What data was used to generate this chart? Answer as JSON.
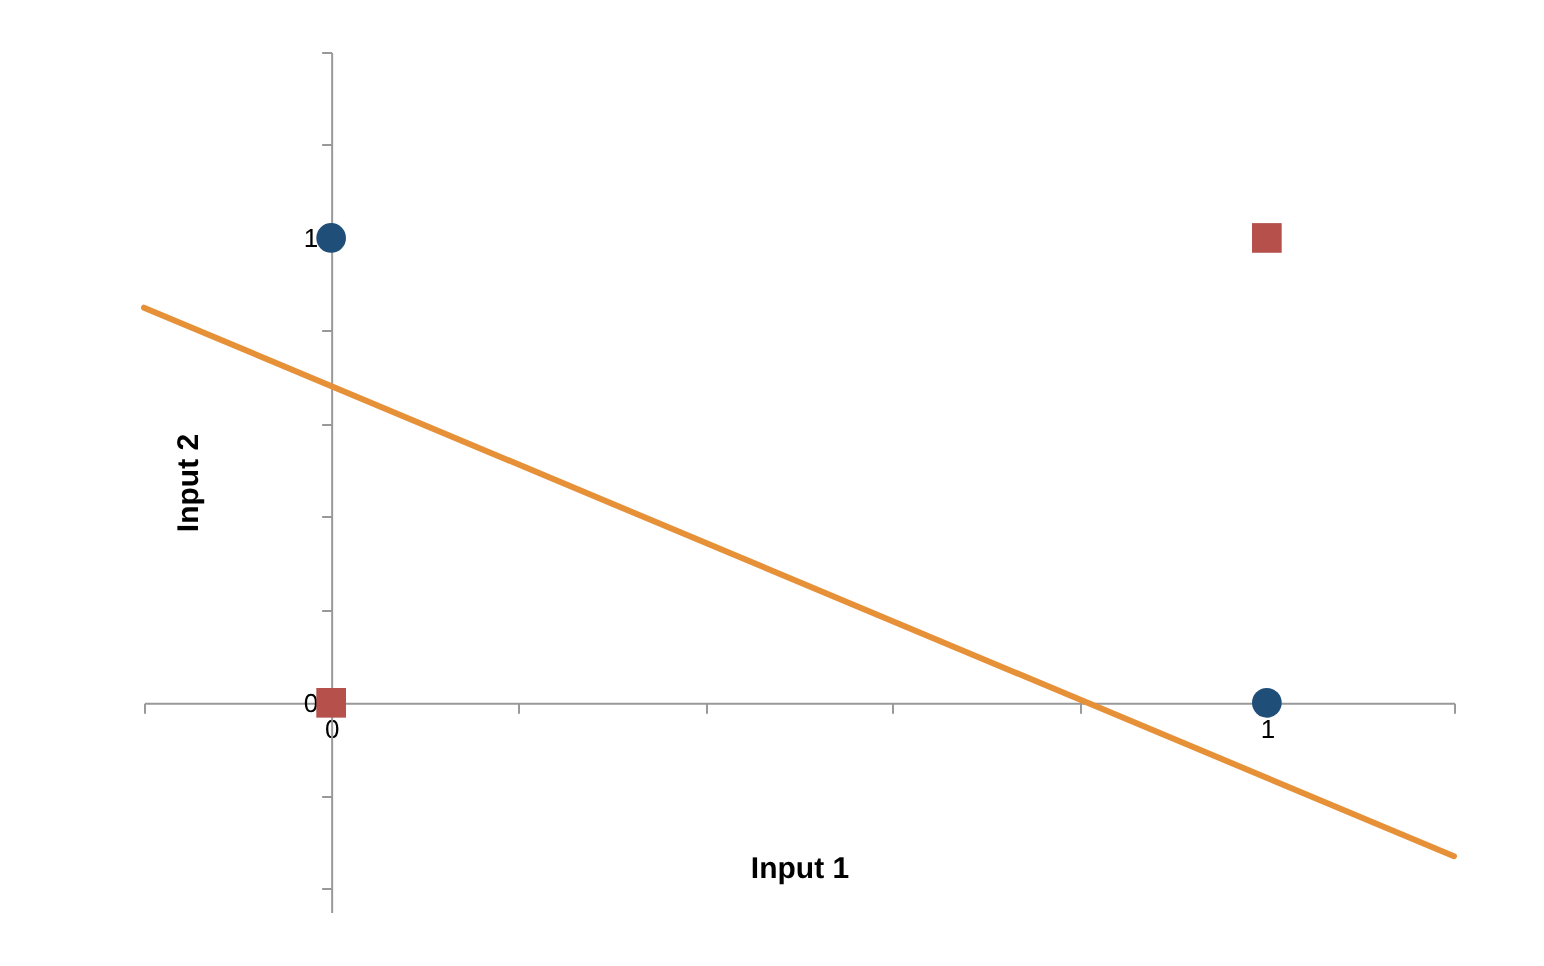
{
  "chart_data": {
    "type": "scatter",
    "xlabel": "Input 1",
    "ylabel": "Input 2",
    "xlim": [
      -0.2,
      1.2
    ],
    "ylim": [
      -0.45,
      1.4
    ],
    "xticks": [
      {
        "value": -0.2,
        "label": null
      },
      0,
      {
        "value": 0.2,
        "label": null
      },
      {
        "value": 0.4,
        "label": null
      },
      {
        "value": 0.6,
        "label": null
      },
      {
        "value": 0.8,
        "label": null
      },
      1,
      {
        "value": 1.2,
        "label": null
      }
    ],
    "yticks": [
      {
        "value": -0.4,
        "label": null
      },
      {
        "value": -0.2,
        "label": null
      },
      0,
      {
        "value": 0.2,
        "label": null
      },
      {
        "value": 0.4,
        "label": null
      },
      {
        "value": 0.6,
        "label": null
      },
      {
        "value": 0.8,
        "label": null
      },
      1,
      {
        "value": 1.2,
        "label": null
      },
      {
        "value": 1.4,
        "label": null
      }
    ],
    "grid": false,
    "series": [
      {
        "marker": "circle",
        "color": "#1f4e79",
        "x": [
          0,
          1
        ],
        "values": [
          1,
          0
        ]
      },
      {
        "marker": "square",
        "color": "#b5504b",
        "x": [
          0,
          1
        ],
        "values": [
          0,
          1
        ]
      },
      {
        "type": "line",
        "marker": "none",
        "line_style": "solid",
        "color": "#e69138",
        "x": [
          -0.2,
          1.2
        ],
        "values": [
          0.85,
          -0.33
        ]
      }
    ]
  }
}
